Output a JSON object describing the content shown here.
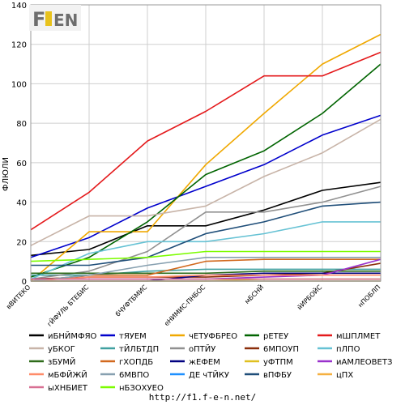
{
  "logo": {
    "text": "F1EN",
    "colors": {
      "dark": "#6e6e6e",
      "accent": "#e8c21c"
    }
  },
  "footer": {
    "url": "http://f1.f-e-n.net/"
  },
  "chart_data": {
    "type": "line",
    "ylabel": "ФЛЮЛИ",
    "xlabel": "",
    "ylim": [
      0,
      140
    ],
    "yticks": [
      0,
      20,
      40,
      60,
      80,
      100,
      120,
      140
    ],
    "grid": true,
    "legend_position": "bottom",
    "categories": [
      "вВИТЕКО",
      "гЙФУЛЬ БТЕБИС",
      "бЧУФТБМИС",
      "еНИМИС-ПНБОС",
      "мБСНЙ",
      "йИРБОЙС",
      "нПОБЛП"
    ],
    "series": [
      {
        "name": "иБНЙМФЯО",
        "color": "#000000",
        "values": [
          13,
          16,
          28,
          28,
          36,
          46,
          50
        ]
      },
      {
        "name": "тЯУЕМ",
        "color": "#0000cc",
        "values": [
          12,
          22,
          37,
          48,
          59,
          74,
          84
        ]
      },
      {
        "name": "чЕТУФБРЕО",
        "color": "#f0a800",
        "values": [
          0,
          25,
          25,
          59,
          85,
          110,
          125
        ]
      },
      {
        "name": "рЕТЕУ",
        "color": "#006400",
        "values": [
          2,
          12,
          30,
          54,
          66,
          85,
          110
        ]
      },
      {
        "name": "мШПЛМЕТ",
        "color": "#e41a1c",
        "values": [
          26,
          45,
          71,
          86,
          104,
          104,
          116
        ]
      },
      {
        "name": "уБКОГ",
        "color": "#c8b4a8",
        "values": [
          18,
          33,
          33,
          38,
          53,
          65,
          82
        ]
      },
      {
        "name": "тЙЛБТДП",
        "color": "#40a0a0",
        "values": [
          3,
          3,
          5,
          6,
          6,
          6,
          6
        ]
      },
      {
        "name": "оПТЙУ",
        "color": "#909090",
        "values": [
          1,
          5,
          15,
          35,
          35,
          40,
          48
        ]
      },
      {
        "name": "6МПОУП",
        "color": "#8b2e0a",
        "values": [
          1,
          2,
          2,
          2,
          3,
          4,
          9
        ]
      },
      {
        "name": "пЛПО",
        "color": "#66c2d4",
        "values": [
          1,
          14,
          20,
          20,
          24,
          30,
          30
        ]
      },
      {
        "name": "зБУМЙ",
        "color": "#2e6b1a",
        "values": [
          4,
          4,
          4,
          4,
          5,
          5,
          5
        ]
      },
      {
        "name": "гХОПДБ",
        "color": "#d2691e",
        "values": [
          0,
          3,
          3,
          10,
          11,
          11,
          11
        ]
      },
      {
        "name": "жЕФЕМ",
        "color": "#000080",
        "values": [
          0,
          0,
          0,
          3,
          4,
          4,
          4
        ]
      },
      {
        "name": "уФТПМ",
        "color": "#e0c020",
        "values": [
          0,
          0,
          0,
          0,
          1,
          1,
          1
        ]
      },
      {
        "name": "иАМЛЕОВЕТЗ",
        "color": "#9932cc",
        "values": [
          1,
          1,
          1,
          1,
          2,
          3,
          11
        ]
      },
      {
        "name": "мБФЙЖЙ",
        "color": "#ff8c69",
        "values": [
          0,
          2,
          2,
          3,
          3,
          3,
          3
        ]
      },
      {
        "name": "6МВПО",
        "color": "#87a0b0",
        "values": [
          0,
          3,
          8,
          12,
          12,
          12,
          12
        ]
      },
      {
        "name": "ДЕ чТЙКУ",
        "color": "#1e90ff",
        "values": [
          0,
          0,
          0,
          0,
          0,
          0,
          0
        ]
      },
      {
        "name": "вПФБУ",
        "color": "#1f4e79",
        "values": [
          8,
          8,
          12,
          24,
          30,
          38,
          40
        ]
      },
      {
        "name": "цПХ",
        "color": "#f5b041",
        "values": [
          0,
          0,
          0,
          0,
          0,
          0,
          0
        ]
      },
      {
        "name": "ыХНБИЕТ",
        "color": "#d87093",
        "values": [
          1,
          1,
          1,
          1,
          1,
          1,
          1
        ]
      },
      {
        "name": "нБЗОХУЕО",
        "color": "#7cfc00",
        "values": [
          10,
          11,
          12,
          15,
          15,
          15,
          15
        ]
      }
    ]
  }
}
